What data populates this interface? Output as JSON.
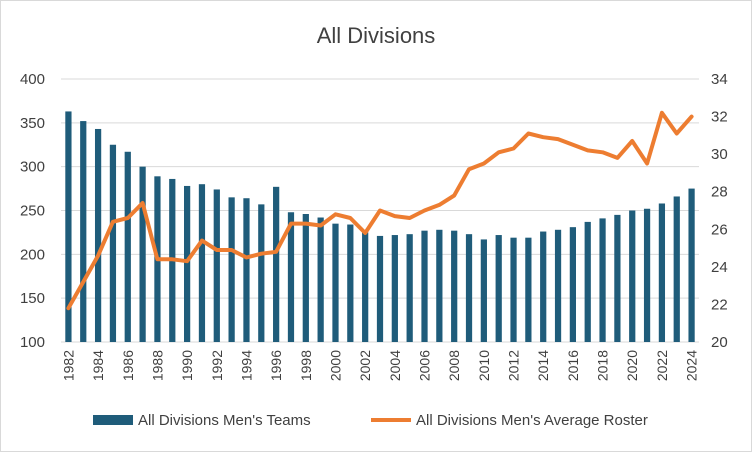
{
  "chart_data": {
    "type": "bar",
    "title": "All Divisions",
    "xlabel": "",
    "ylabel": "",
    "categories": [
      "1982",
      "1983",
      "1984",
      "1985",
      "1986",
      "1987",
      "1988",
      "1989",
      "1990",
      "1991",
      "1992",
      "1993",
      "1994",
      "1995",
      "1996",
      "1997",
      "1998",
      "1999",
      "2000",
      "2001",
      "2002",
      "2003",
      "2004",
      "2005",
      "2006",
      "2007",
      "2008",
      "2009",
      "2010",
      "2011",
      "2012",
      "2013",
      "2014",
      "2015",
      "2016",
      "2017",
      "2018",
      "2019",
      "2020",
      "2021",
      "2022",
      "2023",
      "2024"
    ],
    "x_tick_labels": [
      "1982",
      "1984",
      "1986",
      "1988",
      "1990",
      "1992",
      "1994",
      "1996",
      "1998",
      "2000",
      "2002",
      "2004",
      "2006",
      "2008",
      "2010",
      "2012",
      "2014",
      "2016",
      "2018",
      "2020",
      "2022",
      "2024"
    ],
    "ylim": [
      100,
      400
    ],
    "y_ticks": [
      "100",
      "150",
      "200",
      "250",
      "300",
      "350",
      "400"
    ],
    "y2lim": [
      20,
      34
    ],
    "y2_ticks": [
      "20",
      "22",
      "24",
      "26",
      "28",
      "30",
      "32",
      "34"
    ],
    "grid": "horizontal",
    "legend_position": "bottom",
    "series": [
      {
        "name": "All Divisions Men's Teams",
        "type": "bar",
        "axis": "left",
        "color": "#1f5c7a",
        "values": [
          363,
          352,
          343,
          325,
          317,
          300,
          289,
          286,
          278,
          280,
          274,
          265,
          264,
          257,
          277,
          248,
          246,
          242,
          235,
          234,
          225,
          221,
          222,
          223,
          227,
          228,
          227,
          223,
          217,
          222,
          219,
          219,
          226,
          228,
          231,
          237,
          241,
          245,
          250,
          252,
          258,
          266,
          275
        ]
      },
      {
        "name": "All Divisions Men's Average Roster",
        "type": "line",
        "axis": "right",
        "color": "#ed7d31",
        "values": [
          21.8,
          23.2,
          24.6,
          26.4,
          26.6,
          27.4,
          24.4,
          24.4,
          24.3,
          25.4,
          24.9,
          24.9,
          24.5,
          24.7,
          24.8,
          26.3,
          26.3,
          26.2,
          26.8,
          26.6,
          25.8,
          27.0,
          26.7,
          26.6,
          27.0,
          27.3,
          27.8,
          29.2,
          29.5,
          30.1,
          30.3,
          31.1,
          30.9,
          30.8,
          30.5,
          30.2,
          30.1,
          29.8,
          30.7,
          29.5,
          32.2,
          31.1,
          32.0
        ]
      }
    ]
  }
}
